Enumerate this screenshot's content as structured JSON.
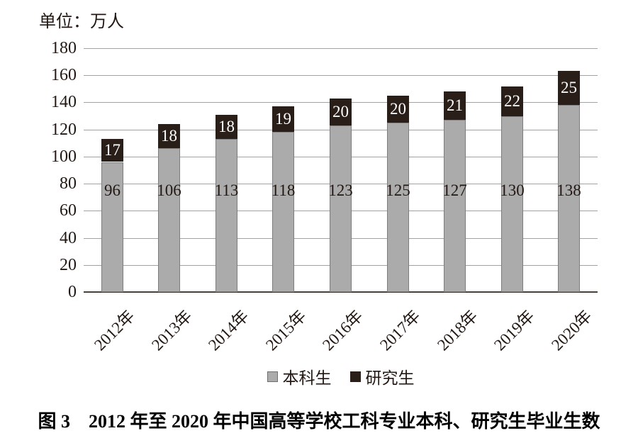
{
  "unit_label": "单位：万人",
  "caption": "图 3　2012 年至 2020 年中国高等学校工科专业本科、研究生毕业生数",
  "colors": {
    "undergrad_fill": "#ababab",
    "undergrad_border": "#7d7d7d",
    "grad_fill": "#2a1e18",
    "gridline": "#a2a2a2",
    "axis": "#4a4038",
    "text": "#221712",
    "grad_value_text": "#ffffff"
  },
  "chart_data": {
    "type": "bar",
    "stacked": true,
    "title": "",
    "xlabel": "",
    "ylabel": "单位：万人",
    "categories": [
      "2012年",
      "2013年",
      "2014年",
      "2015年",
      "2016年",
      "2017年",
      "2018年",
      "2019年",
      "2020年"
    ],
    "series": [
      {
        "name": "本科生",
        "color": "#ababab",
        "values": [
          96,
          106,
          113,
          118,
          123,
          125,
          127,
          130,
          138
        ]
      },
      {
        "name": "研究生",
        "color": "#2a1e18",
        "values": [
          17,
          18,
          18,
          19,
          20,
          20,
          21,
          22,
          25
        ]
      }
    ],
    "totals": [
      113,
      124,
      131,
      137,
      143,
      145,
      148,
      152,
      163
    ],
    "ylim": [
      0,
      180
    ],
    "ytick_step": 20,
    "yticks": [
      0,
      20,
      40,
      60,
      80,
      100,
      120,
      140,
      160,
      180
    ],
    "grid": true,
    "legend_position": "bottom"
  },
  "legend": {
    "items": [
      {
        "label": "本科生",
        "color": "#ababab"
      },
      {
        "label": "研究生",
        "color": "#2a1e18"
      }
    ]
  }
}
